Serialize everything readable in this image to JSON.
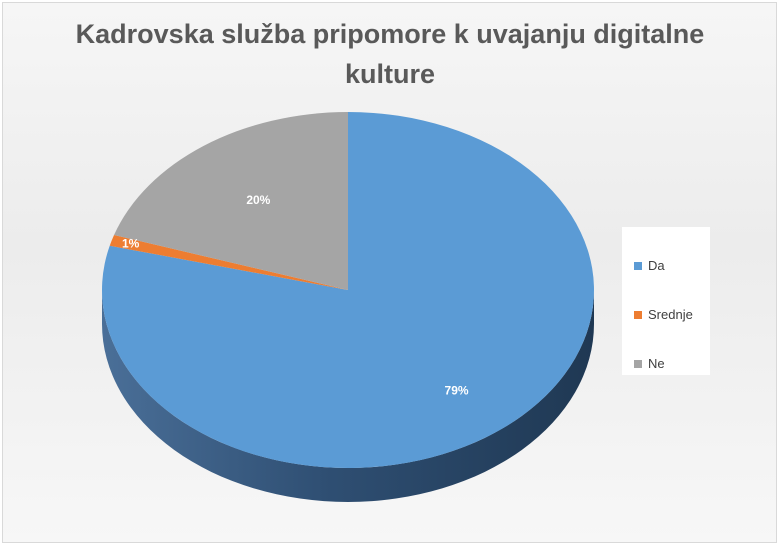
{
  "chart_data": {
    "type": "pie",
    "title": "Kadrovska služba pripomore k uvajanju digitalne kulture",
    "categories": [
      "Da",
      "Srednje",
      "Ne"
    ],
    "values": [
      79,
      1,
      20
    ],
    "data_labels": [
      "79%",
      "1%",
      "20%"
    ],
    "colors": [
      "#5b9bd5",
      "#ed7d31",
      "#a5a5a5"
    ],
    "legend_position": "right",
    "style": "3d"
  }
}
